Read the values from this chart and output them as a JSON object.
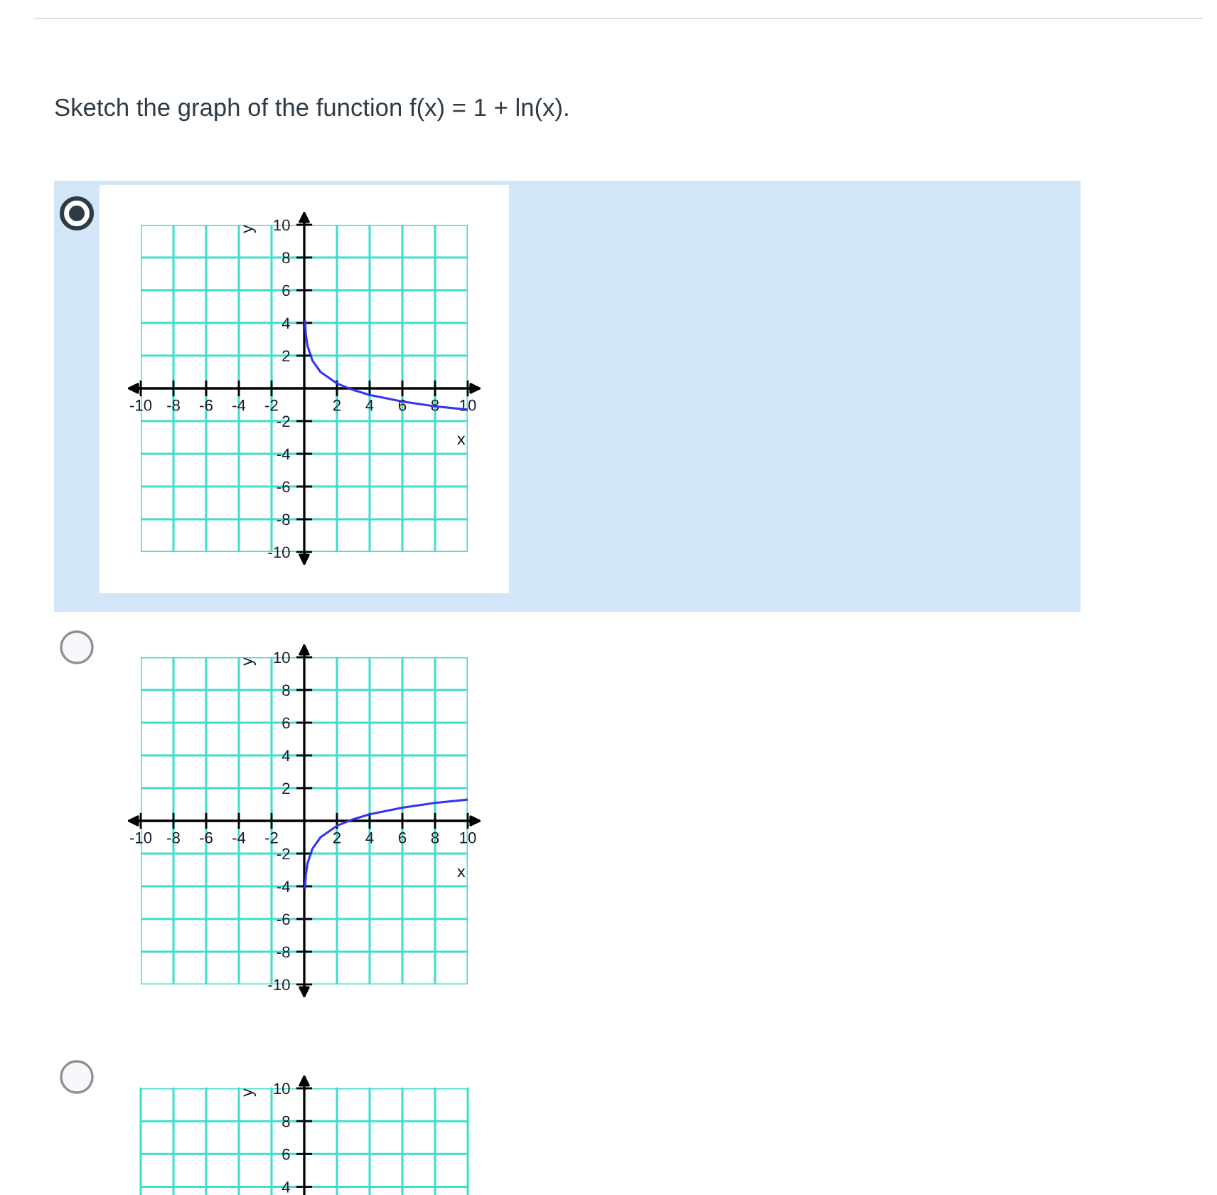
{
  "chart_data": [
    {
      "type": "line",
      "title": "Sketch the graph of the function f(x) = 1 + ln(x).",
      "xlabel": "x",
      "ylabel": "y",
      "series": [
        {
          "color": "#3434f2",
          "x": [
            0.05,
            0.1,
            0.2,
            0.5,
            1,
            2,
            3,
            4,
            6,
            8,
            10
          ],
          "values": [
            4.1,
            3.3,
            2.6,
            1.7,
            1.0,
            0.3,
            -0.1,
            -0.4,
            -0.8,
            -1.1,
            -1.3
          ]
        }
      ],
      "xlim": [
        -10,
        10
      ],
      "ylim": [
        -10,
        10
      ],
      "xticks": [
        -10,
        -8,
        -6,
        -4,
        -2,
        2,
        4,
        6,
        8,
        10
      ],
      "yticks": [
        -10,
        -8,
        -6,
        -4,
        -2,
        2,
        4,
        6,
        8,
        10
      ],
      "grid": true
    },
    {
      "type": "line",
      "xlabel": "x",
      "ylabel": "y",
      "series": [
        {
          "color": "#3434f2",
          "x": [
            0.05,
            0.1,
            0.2,
            0.5,
            1,
            2,
            3,
            4,
            6,
            8,
            10
          ],
          "values": [
            -4.1,
            -3.3,
            -2.6,
            -1.7,
            -1.0,
            -0.3,
            0.1,
            0.4,
            0.8,
            1.1,
            1.3
          ]
        }
      ],
      "xlim": [
        -10,
        10
      ],
      "ylim": [
        -10,
        10
      ],
      "xticks": [
        -10,
        -8,
        -6,
        -4,
        -2,
        2,
        4,
        6,
        8,
        10
      ],
      "yticks": [
        -10,
        -8,
        -6,
        -4,
        -2,
        2,
        4,
        6,
        8,
        10
      ],
      "grid": true
    },
    {
      "type": "line",
      "ylabel": "y",
      "xlim": [
        -10,
        10
      ],
      "ylim": [
        3.5,
        10
      ],
      "xticks": [
        -10,
        -8,
        -6,
        -4,
        -2,
        2,
        4,
        6,
        8,
        10
      ],
      "yticks": [
        4,
        6,
        8,
        10
      ],
      "grid": true,
      "tick_labels": "y"
    }
  ]
}
